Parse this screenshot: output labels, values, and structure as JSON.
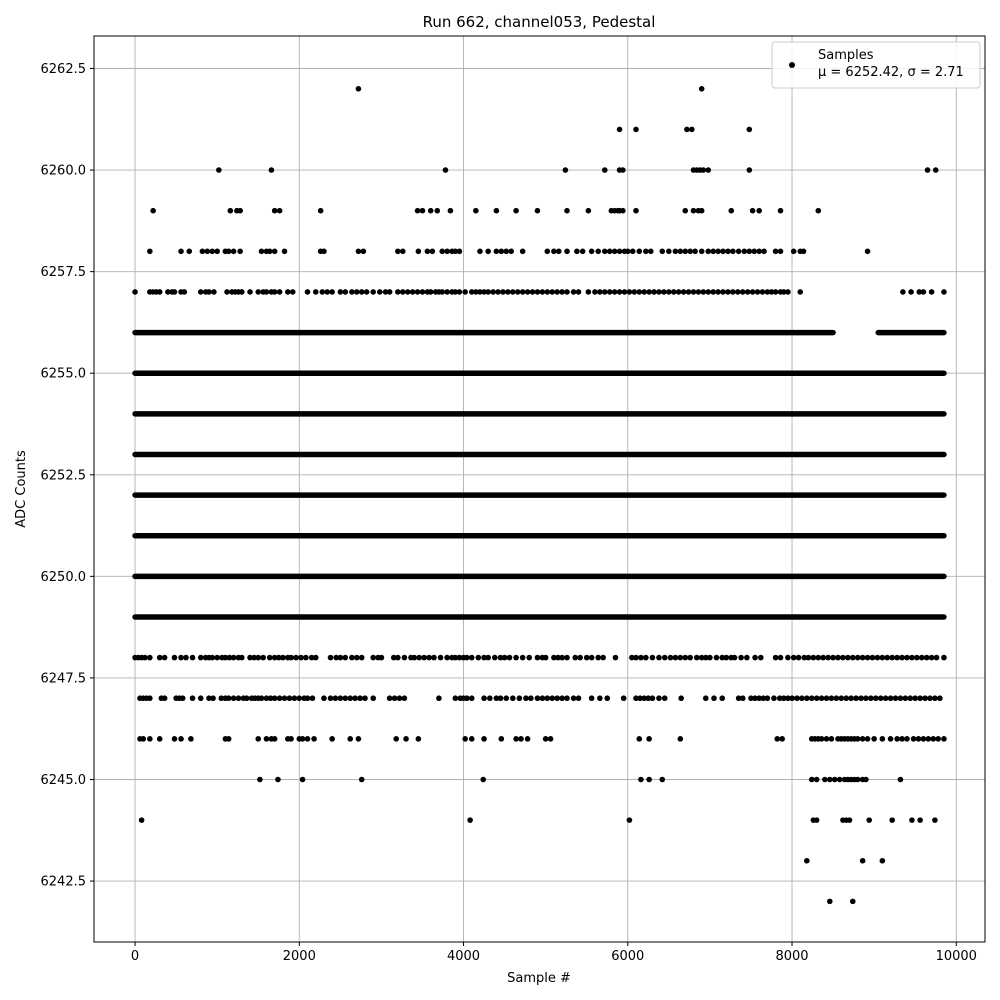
{
  "chart_data": {
    "type": "scatter",
    "title": "Run 662, channel053, Pedestal",
    "xlabel": "Sample #",
    "ylabel": "ADC Counts",
    "xlim": [
      -500,
      10350
    ],
    "ylim": [
      6241.0,
      6263.3
    ],
    "xticks": [
      0,
      2000,
      4000,
      6000,
      8000,
      10000
    ],
    "xtick_labels": [
      "0",
      "2000",
      "4000",
      "6000",
      "8000",
      "10000"
    ],
    "yticks": [
      6242.5,
      6245.0,
      6247.5,
      6250.0,
      6252.5,
      6255.0,
      6257.5,
      6260.0,
      6262.5
    ],
    "ytick_labels": [
      "6242.5",
      "6245.0",
      "6247.5",
      "6250.0",
      "6252.5",
      "6255.0",
      "6257.5",
      "6260.0",
      "6262.5"
    ],
    "grid": true,
    "legend_position": "top-right",
    "marker_color": "#000000",
    "series": [
      {
        "name": "Samples",
        "legend_stats": "μ = 6252.42, σ = 2.71",
        "bands": [
          {
            "y": 6251,
            "ranges": [
              [
                0,
                9850
              ]
            ]
          },
          {
            "y": 6252,
            "ranges": [
              [
                0,
                9850
              ]
            ]
          },
          {
            "y": 6253,
            "ranges": [
              [
                0,
                9850
              ]
            ]
          },
          {
            "y": 6254,
            "ranges": [
              [
                0,
                9850
              ]
            ]
          },
          {
            "y": 6250,
            "ranges": [
              [
                0,
                9850
              ]
            ]
          },
          {
            "y": 6255,
            "ranges": [
              [
                0,
                9850
              ]
            ]
          },
          {
            "y": 6249,
            "ranges": [
              [
                0,
                9850
              ]
            ]
          },
          {
            "y": 6256,
            "ranges": [
              [
                0,
                8500
              ],
              [
                9050,
                9850
              ]
            ]
          }
        ],
        "sparse_levels": [
          {
            "y": 6248,
            "xs": [
              0,
              40,
              80,
              120,
              180,
              300,
              360,
              480,
              560,
              620,
              700,
              800,
              860,
              900,
              940,
              1000,
              1060,
              1100,
              1150,
              1200,
              1260,
              1300,
              1400,
              1450,
              1500,
              1560,
              1640,
              1700,
              1750,
              1800,
              1860,
              1900,
              1960,
              2020,
              2080,
              2150,
              2200,
              2380,
              2450,
              2500,
              2560,
              2640,
              2700,
              2760,
              2900,
              2960,
              3000,
              3150,
              3200,
              3280,
              3360,
              3400,
              3460,
              3520,
              3580,
              3640,
              3720,
              3800,
              3860,
              3900,
              3950,
              4000,
              4040,
              4100,
              4180,
              4250,
              4300,
              4380,
              4450,
              4500,
              4560,
              4640,
              4720,
              4800,
              4900,
              4960,
              5000,
              5100,
              5150,
              5200,
              5260,
              5360,
              5420,
              5500,
              5560,
              5640,
              5700,
              5850,
              6050,
              6100,
              6160,
              6220,
              6300,
              6380,
              6450,
              6520,
              6580,
              6640,
              6700,
              6760,
              6840,
              6900,
              6950,
              7000,
              7080,
              7150,
              7200,
              7260,
              7300,
              7380,
              7450,
              7550,
              7620,
              7800,
              7860,
              7950,
              8020,
              8080,
              8150,
              8200,
              8260,
              8320,
              8380,
              8440,
              8500,
              8560,
              8620,
              8680,
              8740,
              8800,
              8860,
              8920,
              8980,
              9040,
              9100,
              9160,
              9220,
              9280,
              9340,
              9400,
              9460,
              9520,
              9580,
              9640,
              9700,
              9760,
              9850
            ]
          },
          {
            "y": 6247,
            "xs": [
              60,
              100,
              140,
              180,
              320,
              360,
              500,
              540,
              580,
              700,
              800,
              900,
              950,
              1050,
              1100,
              1140,
              1200,
              1260,
              1320,
              1360,
              1420,
              1460,
              1500,
              1540,
              1600,
              1650,
              1700,
              1760,
              1820,
              1880,
              1940,
              2000,
              2060,
              2100,
              2160,
              2300,
              2380,
              2440,
              2500,
              2560,
              2620,
              2680,
              2740,
              2800,
              2900,
              3100,
              3160,
              3220,
              3280,
              3700,
              3900,
              3960,
              4000,
              4040,
              4100,
              4250,
              4320,
              4400,
              4450,
              4520,
              4600,
              4680,
              4760,
              4820,
              4900,
              4960,
              5020,
              5080,
              5140,
              5200,
              5260,
              5340,
              5400,
              5560,
              5660,
              5750,
              5950,
              6100,
              6150,
              6200,
              6250,
              6300,
              6380,
              6450,
              6650,
              6950,
              7050,
              7150,
              7350,
              7400,
              7500,
              7550,
              7600,
              7650,
              7700,
              7780,
              7850,
              7900,
              7950,
              8000,
              8060,
              8120,
              8180,
              8240,
              8300,
              8360,
              8420,
              8480,
              8540,
              8600,
              8660,
              8720,
              8780,
              8840,
              8900,
              8960,
              9020,
              9080,
              9140,
              9200,
              9260,
              9320,
              9380,
              9440,
              9500,
              9560,
              9620,
              9680,
              9740,
              9800
            ]
          },
          {
            "y": 6257,
            "xs": [
              0,
              180,
              220,
              260,
              300,
              400,
              450,
              480,
              560,
              600,
              800,
              860,
              900,
              960,
              1120,
              1180,
              1220,
              1260,
              1300,
              1400,
              1500,
              1560,
              1600,
              1660,
              1700,
              1760,
              1860,
              1920,
              2100,
              2200,
              2280,
              2340,
              2400,
              2500,
              2560,
              2640,
              2700,
              2760,
              2820,
              2900,
              2980,
              3050,
              3100,
              3200,
              3260,
              3320,
              3380,
              3440,
              3500,
              3560,
              3600,
              3660,
              3700,
              3740,
              3800,
              3860,
              3900,
              3950,
              4020,
              4100,
              4150,
              4200,
              4250,
              4300,
              4360,
              4420,
              4480,
              4540,
              4600,
              4660,
              4720,
              4780,
              4840,
              4900,
              4960,
              5020,
              5080,
              5140,
              5200,
              5260,
              5340,
              5400,
              5520,
              5600,
              5660,
              5720,
              5780,
              5840,
              5900,
              5960,
              6020,
              6080,
              6140,
              6200,
              6260,
              6320,
              6380,
              6440,
              6500,
              6560,
              6620,
              6680,
              6740,
              6800,
              6860,
              6920,
              6980,
              7040,
              7100,
              7160,
              7220,
              7280,
              7340,
              7400,
              7460,
              7520,
              7580,
              7640,
              7700,
              7750,
              7800,
              7860,
              7900,
              7950,
              8100,
              9350,
              9450,
              9550,
              9600,
              9700,
              9850
            ]
          },
          {
            "y": 6258,
            "xs": [
              180,
              560,
              660,
              820,
              880,
              940,
              1000,
              1100,
              1140,
              1200,
              1280,
              1540,
              1600,
              1640,
              1700,
              1820,
              2260,
              2300,
              2720,
              2780,
              3200,
              3260,
              3450,
              3560,
              3620,
              3740,
              3800,
              3860,
              3900,
              3950,
              4200,
              4300,
              4400,
              4460,
              4520,
              4580,
              4720,
              5020,
              5100,
              5160,
              5260,
              5380,
              5450,
              5560,
              5640,
              5720,
              5780,
              5840,
              5900,
              5960,
              6000,
              6060,
              6140,
              6220,
              6280,
              6420,
              6500,
              6580,
              6640,
              6700,
              6760,
              6820,
              6900,
              6980,
              7040,
              7100,
              7160,
              7220,
              7280,
              7350,
              7420,
              7480,
              7540,
              7600,
              7660,
              7800,
              7860,
              8020,
              8100,
              8140,
              8920
            ]
          },
          {
            "y": 6246,
            "xs": [
              60,
              100,
              180,
              300,
              480,
              560,
              680,
              1100,
              1140,
              1500,
              1600,
              1660,
              1700,
              1860,
              1900,
              2000,
              2040,
              2100,
              2180,
              2400,
              2620,
              2720,
              3180,
              3300,
              3450,
              4020,
              4100,
              4250,
              4460,
              4640,
              4700,
              4780,
              5000,
              5060,
              6140,
              6260,
              6640,
              7820,
              7880,
              8240,
              8280,
              8320,
              8360,
              8420,
              8480,
              8560,
              8600,
              8640,
              8680,
              8720,
              8760,
              8800,
              8860,
              8920,
              9000,
              9100,
              9200,
              9280,
              9340,
              9400,
              9480,
              9540,
              9600,
              9660,
              9720,
              9780,
              9850
            ]
          },
          {
            "y": 6259,
            "xs": [
              220,
              1160,
              1240,
              1280,
              1700,
              1760,
              2260,
              3440,
              3500,
              3600,
              3680,
              3840,
              4150,
              4400,
              4640,
              4900,
              5260,
              5520,
              5800,
              5840,
              5880,
              5900,
              5940,
              6100,
              6700,
              6800,
              6860,
              6900,
              7260,
              7520,
              7600,
              7860,
              8320
            ]
          },
          {
            "y": 6245,
            "xs": [
              1520,
              1740,
              2040,
              2760,
              4240,
              6160,
              6260,
              6420,
              8240,
              8300,
              8400,
              8460,
              8520,
              8580,
              8640,
              8680,
              8720,
              8760,
              8800,
              8860,
              8900,
              9320
            ]
          },
          {
            "y": 6260,
            "xs": [
              1020,
              1660,
              3780,
              5240,
              5720,
              5900,
              5940,
              6800,
              6840,
              6880,
              6920,
              6980,
              7480,
              9650,
              9750
            ]
          },
          {
            "y": 6244,
            "xs": [
              80,
              4080,
              6020,
              8260,
              8300,
              8620,
              8660,
              8700,
              8940,
              9220,
              9460,
              9560,
              9740
            ]
          },
          {
            "y": 6261,
            "xs": [
              5900,
              6100,
              6720,
              6780,
              7480
            ]
          },
          {
            "y": 6262,
            "xs": [
              2720,
              6900
            ]
          },
          {
            "y": 6243,
            "xs": [
              8180,
              8860,
              9100
            ]
          },
          {
            "y": 6242,
            "xs": [
              8460,
              8740
            ]
          }
        ]
      }
    ]
  }
}
